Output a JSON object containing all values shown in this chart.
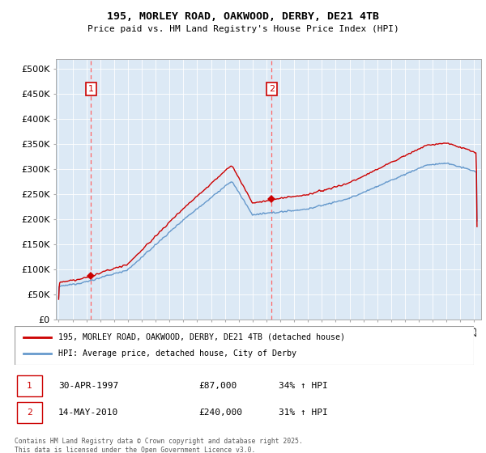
{
  "title1": "195, MORLEY ROAD, OAKWOOD, DERBY, DE21 4TB",
  "title2": "Price paid vs. HM Land Registry's House Price Index (HPI)",
  "ytick_vals": [
    0,
    50000,
    100000,
    150000,
    200000,
    250000,
    300000,
    350000,
    400000,
    450000,
    500000
  ],
  "ylim": [
    0,
    520000
  ],
  "xlim_start": 1994.8,
  "xlim_end": 2025.5,
  "bg_color": "#dce9f5",
  "plot_bg": "#dce9f5",
  "line1_color": "#cc0000",
  "line2_color": "#6699cc",
  "vline_color": "#ff6666",
  "annotation_box_color": "#cc0000",
  "legend_label1": "195, MORLEY ROAD, OAKWOOD, DERBY, DE21 4TB (detached house)",
  "legend_label2": "HPI: Average price, detached house, City of Derby",
  "note1_label": "1",
  "note1_date": "30-APR-1997",
  "note1_price": "£87,000",
  "note1_pct": "34% ↑ HPI",
  "note2_label": "2",
  "note2_date": "14-MAY-2010",
  "note2_price": "£240,000",
  "note2_pct": "31% ↑ HPI",
  "copyright": "Contains HM Land Registry data © Crown copyright and database right 2025.\nThis data is licensed under the Open Government Licence v3.0.",
  "sale1_year": 1997.33,
  "sale1_price": 87000,
  "sale2_year": 2010.37,
  "sale2_price": 240000
}
